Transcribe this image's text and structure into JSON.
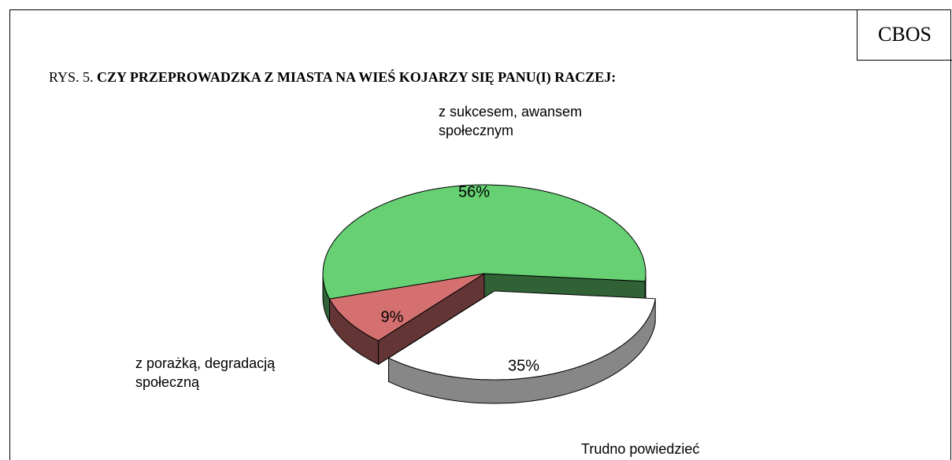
{
  "chart_data": {
    "type": "pie",
    "badge": "CBOS",
    "title_prefix": "RYS. 5.",
    "title": "CZY PRZEPROWADZKA Z MIASTA NA WIEŚ KOJARZY SIĘ PANU(I) RACZEJ:",
    "categories": [
      "z sukcesem, awansem społecznym",
      "z porażką, degradacją społeczną",
      "Trudno powiedzieć"
    ],
    "values": [
      56,
      9,
      35
    ],
    "value_labels": [
      "56%",
      "9%",
      "35%"
    ],
    "colors": [
      "#66d073",
      "#d47070",
      "#ffffff"
    ],
    "exploded": [
      false,
      false,
      true
    ]
  }
}
